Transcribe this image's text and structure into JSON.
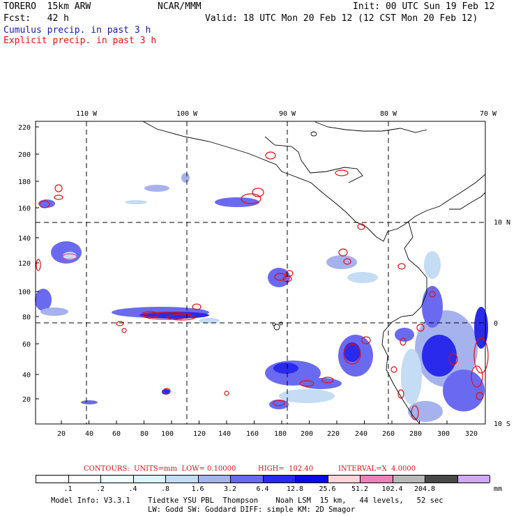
{
  "header": {
    "model": "TORERO  15km ARW",
    "org": "NCAR/MMM",
    "init": "Init: 00 UTC Sun 19 Feb 12",
    "fcst": "Fcst:   42 h",
    "valid": "Valid: 18 UTC Mon 20 Feb 12 (12 CST Mon 20 Feb 12)",
    "legend_cumulus": "Cumulus precip. in past 3 h",
    "legend_explicit": "Explicit precip. in past 3 h",
    "legend_cumulus_color": "#1a1aa8",
    "legend_explicit_color": "#e01010"
  },
  "map": {
    "lon_labels": [
      "110 W",
      "100 W",
      "90 W",
      "80 W",
      "70 W"
    ],
    "lat_labels": [
      "10 N",
      "0",
      "10 S"
    ],
    "y_ticks": [
      "20",
      "40",
      "60",
      "80",
      "100",
      "120",
      "140",
      "160",
      "180",
      "200",
      "220"
    ],
    "x_ticks": [
      "20",
      "40",
      "60",
      "80",
      "100",
      "120",
      "140",
      "160",
      "180",
      "200",
      "220",
      "240",
      "260",
      "280",
      "300",
      "320"
    ]
  },
  "contours_info": {
    "contours": "CONTOURS:  UNITS=mm  LOW= 0.10000",
    "high": "HIGH=  102.40",
    "interval": "INTERVAL=X  4.0000",
    "color": "#d01010"
  },
  "colorbar": {
    "levels": [
      {
        "label": ".1",
        "color": "#ffffff"
      },
      {
        "label": ".2",
        "color": "#ffffff"
      },
      {
        "label": ".4",
        "color": "#f0ffff"
      },
      {
        "label": ".8",
        "color": "#ddf4fb"
      },
      {
        "label": "1.6",
        "color": "#c4dcf4"
      },
      {
        "label": "3.2",
        "color": "#a6b2ee"
      },
      {
        "label": "6.4",
        "color": "#6a6af0"
      },
      {
        "label": "12.8",
        "color": "#2a2aec"
      },
      {
        "label": "25.6",
        "color": "#0a0ae4"
      },
      {
        "label": "51.2",
        "color": "#ffd4d8"
      },
      {
        "label": "102.4",
        "color": "#f080b8"
      },
      {
        "label": "204.8",
        "color": "#b8b8b8"
      },
      {
        "label": "",
        "color": "#484848"
      },
      {
        "label": "",
        "color": "#d0a8f8"
      }
    ],
    "unit": "mm"
  },
  "footer": {
    "line1": "Model Info: V3.3.1    Tiedtke YSU PBL  Thompson    Noah LSM  15 km,   44 levels,   52 sec",
    "line2": "LW: Godd SW: Goddard DIFF: simple KM: 2D Smagor"
  }
}
